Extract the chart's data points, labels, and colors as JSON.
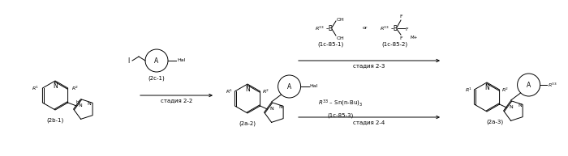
{
  "background_color": "#ffffff",
  "fig_width": 7.0,
  "fig_height": 1.93,
  "dpi": 100,
  "compounds": {
    "2b1_label": "(2b-1)",
    "2a2_label": "(2a-2)",
    "2a3_label": "(2a-3)",
    "2c1_label": "(2c-1)",
    "1c851_label": "(1c-85-1)",
    "1c852_label": "(1c-85-2)",
    "1c853_label": "(1c-85-3)"
  }
}
